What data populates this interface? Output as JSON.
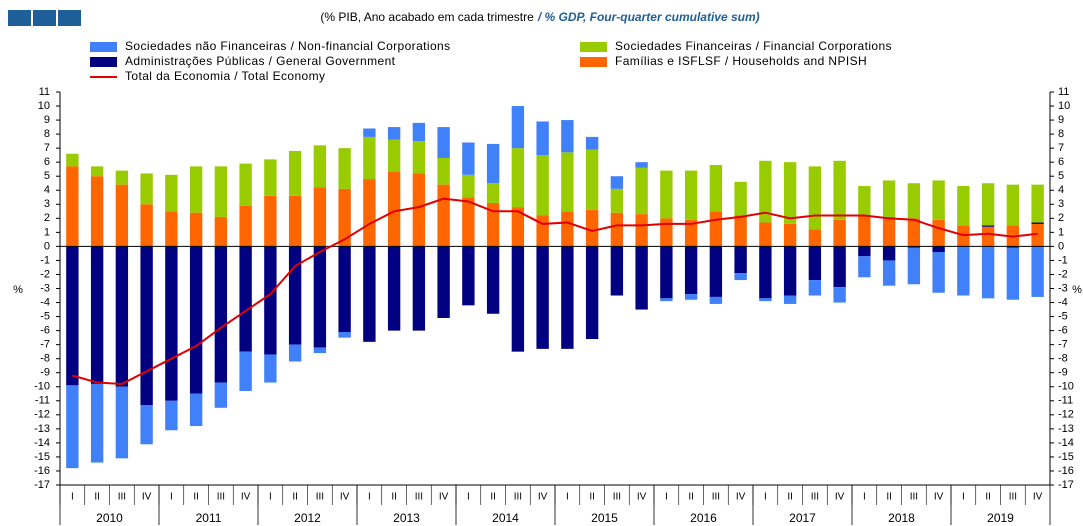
{
  "chart_data": {
    "type": "stacked_bar_line",
    "title_pt": "(% PIB, Ano acabado em cada trimestre",
    "title_en": "/ % GDP, Four-quarter cumulative sum)",
    "y_label": "%",
    "categories": [
      "I",
      "II",
      "III",
      "IV",
      "I",
      "II",
      "III",
      "IV",
      "I",
      "II",
      "III",
      "IV",
      "I",
      "II",
      "III",
      "IV",
      "I",
      "II",
      "III",
      "IV",
      "I",
      "II",
      "III",
      "IV",
      "I",
      "II",
      "III",
      "IV",
      "I",
      "II",
      "III",
      "IV",
      "I",
      "II",
      "III",
      "IV",
      "I",
      "II",
      "III",
      "IV"
    ],
    "years": [
      "2010",
      "2011",
      "2012",
      "2013",
      "2014",
      "2015",
      "2016",
      "2017",
      "2018",
      "2019"
    ],
    "series": [
      {
        "name": "Famílias e ISFLSF / Households and NPISH",
        "color": "#ff6600",
        "kind": "bar",
        "values": [
          5.7,
          5.0,
          4.4,
          3.0,
          2.5,
          2.4,
          2.1,
          2.9,
          3.6,
          3.6,
          4.2,
          4.1,
          4.8,
          5.3,
          5.2,
          4.4,
          3.5,
          3.1,
          2.8,
          2.2,
          2.5,
          2.6,
          2.4,
          2.3,
          2.0,
          1.9,
          2.5,
          2.2,
          1.7,
          1.6,
          1.2,
          1.9,
          2.2,
          2.1,
          2.0,
          1.9,
          1.5,
          1.4,
          1.5,
          1.6
        ]
      },
      {
        "name": "Administrações Públicas / General Government",
        "color": "#000080",
        "kind": "bar",
        "values": [
          -9.9,
          -9.8,
          -10.0,
          -11.3,
          -11.0,
          -10.5,
          -9.7,
          -7.5,
          -7.7,
          -7.0,
          -7.2,
          -6.1,
          -6.8,
          -6.0,
          -6.0,
          -5.1,
          -4.2,
          -4.8,
          -7.5,
          -7.3,
          -7.3,
          -6.6,
          -3.5,
          -4.5,
          -3.7,
          -3.4,
          -3.6,
          -1.9,
          -3.7,
          -3.5,
          -2.4,
          -2.9,
          -0.7,
          -1.0,
          -0.1,
          -0.4,
          0,
          0.1,
          -0.1,
          0.1
        ]
      },
      {
        "name": "Sociedades Financeiras / Financial Corporations",
        "color": "#99cc00",
        "kind": "bar",
        "values": [
          0.9,
          0.7,
          1.0,
          2.2,
          2.6,
          3.3,
          3.6,
          3.0,
          2.6,
          3.2,
          3.0,
          2.9,
          3.0,
          2.3,
          2.3,
          1.9,
          1.6,
          1.4,
          4.2,
          4.3,
          4.2,
          4.3,
          1.7,
          3.3,
          3.4,
          3.5,
          3.3,
          2.4,
          4.4,
          4.4,
          4.5,
          4.2,
          2.1,
          2.6,
          2.5,
          2.8,
          2.8,
          3.0,
          2.9,
          2.7
        ]
      },
      {
        "name": "Sociedades não Financeiras / Non-financial Corporations",
        "color": "#4080f8",
        "kind": "bar",
        "values": [
          -5.9,
          -5.6,
          -5.1,
          -2.8,
          -2.1,
          -2.3,
          -1.8,
          -2.8,
          -2.0,
          -1.2,
          -0.4,
          -0.4,
          0.6,
          0.9,
          1.3,
          2.2,
          2.3,
          2.8,
          3.0,
          2.4,
          2.3,
          0.9,
          0.9,
          0.4,
          -0.2,
          -0.4,
          -0.5,
          -0.5,
          -0.2,
          -0.6,
          -1.1,
          -1.1,
          -1.5,
          -1.8,
          -2.6,
          -2.9,
          -3.5,
          -3.7,
          -3.7,
          -3.6
        ]
      },
      {
        "name": "Total da Economia / Total Economy",
        "color": "#e00000",
        "kind": "line",
        "values": [
          -9.2,
          -9.7,
          -9.8,
          -8.9,
          -8.0,
          -7.1,
          -5.8,
          -4.6,
          -3.4,
          -1.4,
          -0.4,
          0.5,
          1.6,
          2.5,
          2.8,
          3.4,
          3.2,
          2.5,
          2.5,
          1.6,
          1.7,
          1.1,
          1.5,
          1.5,
          1.6,
          1.6,
          1.9,
          2.1,
          2.4,
          2.0,
          2.2,
          2.2,
          2.2,
          2.0,
          1.9,
          1.3,
          0.8,
          0.9,
          0.7,
          0.9
        ]
      }
    ],
    "ylim": [
      -17,
      11
    ],
    "yticks": [
      -17,
      -16,
      -15,
      -14,
      -13,
      -12,
      -11,
      -10,
      -9,
      -8,
      -7,
      -6,
      -5,
      -4,
      -3,
      -2,
      -1,
      0,
      1,
      2,
      3,
      4,
      5,
      6,
      7,
      8,
      9,
      10,
      11
    ]
  }
}
